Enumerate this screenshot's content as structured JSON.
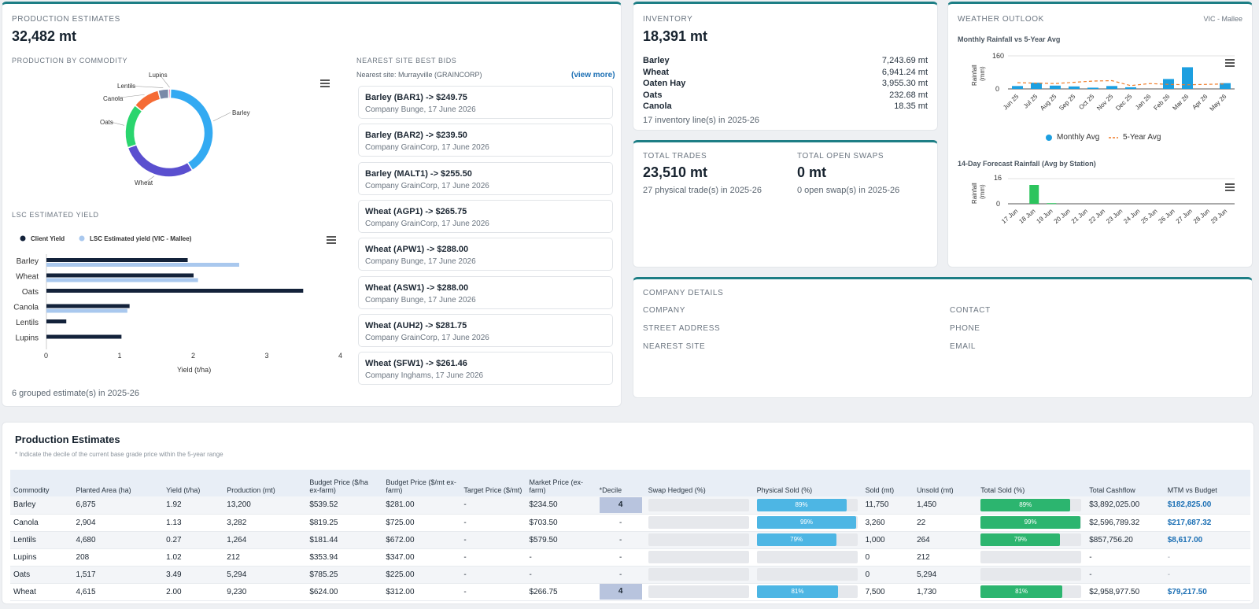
{
  "production": {
    "label": "PRODUCTION ESTIMATES",
    "value": "32,482 mt",
    "by_commodity_label": "PRODUCTION BY COMMODITY",
    "donut": {
      "segments": [
        {
          "name": "Barley",
          "value": 13200,
          "color": "#33aaf2"
        },
        {
          "name": "Wheat",
          "value": 9230,
          "color": "#5a4fcf"
        },
        {
          "name": "Oats",
          "value": 5294,
          "color": "#2ad56e"
        },
        {
          "name": "Canola",
          "value": 3282,
          "color": "#f56b35"
        },
        {
          "name": "Lentils",
          "value": 1264,
          "color": "#7a8aa8"
        },
        {
          "name": "Lupins",
          "value": 212,
          "color": "#e86aa6"
        }
      ]
    },
    "yield_label": "LSC ESTIMATED YIELD",
    "footer": "6 grouped estimate(s) in 2025-26"
  },
  "chart_data": [
    {
      "type": "pie",
      "categories": [
        "Barley",
        "Wheat",
        "Oats",
        "Canola",
        "Lentils",
        "Lupins"
      ],
      "values": [
        13200,
        9230,
        5294,
        3282,
        1264,
        212
      ],
      "title": "PRODUCTION BY COMMODITY"
    },
    {
      "type": "bar",
      "orientation": "horizontal",
      "categories": [
        "Barley",
        "Wheat",
        "Oats",
        "Canola",
        "Lentils",
        "Lupins"
      ],
      "series": [
        {
          "name": "Client Yield",
          "values": [
            1.92,
            2.0,
            3.49,
            1.13,
            0.27,
            1.02
          ],
          "color": "#13223a"
        },
        {
          "name": "LSC Estimated yield (VIC - Mallee)",
          "values": [
            2.62,
            2.06,
            null,
            1.1,
            null,
            null
          ],
          "color": "#a9c8ee"
        }
      ],
      "xlabel": "Yield (t/ha)",
      "xlim": [
        0,
        4
      ],
      "xticks": [
        "0",
        "1",
        "2",
        "3",
        "4"
      ],
      "title": "LSC ESTIMATED YIELD"
    },
    {
      "type": "bar",
      "categories": [
        "Jun 25",
        "Jul 25",
        "Aug 25",
        "Sep 25",
        "Oct 25",
        "Nov 25",
        "Dec 25",
        "Jan 26",
        "Feb 26",
        "Mar 26",
        "Apr 26",
        "May 26"
      ],
      "series": [
        {
          "name": "Monthly Avg",
          "type": "bar",
          "values": [
            14,
            30,
            16,
            12,
            6,
            14,
            8,
            0,
            48,
            105,
            0,
            28
          ],
          "color": "#1d9fe0"
        },
        {
          "name": "5-Year Avg",
          "type": "line",
          "values": [
            30,
            28,
            26,
            32,
            38,
            40,
            16,
            26,
            22,
            20,
            22,
            24
          ],
          "color": "#ef7d2a"
        }
      ],
      "ylabel": "Rainfall (mm)",
      "ylim": [
        0,
        160
      ],
      "yticks": [
        "0",
        "160"
      ],
      "title": "Monthly Rainfall vs 5-Year Avg"
    },
    {
      "type": "bar",
      "categories": [
        "17 Jun",
        "18 Jun",
        "19 Jun",
        "20 Jun",
        "21 Jun",
        "22 Jun",
        "23 Jun",
        "24 Jun",
        "25 Jun",
        "26 Jun",
        "27 Jun",
        "28 Jun",
        "29 Jun"
      ],
      "values": [
        0,
        12,
        0.4,
        0,
        0,
        0,
        0,
        0,
        0,
        0,
        0,
        0,
        0
      ],
      "ylabel": "Rainfall (mm)",
      "ylim": [
        0,
        16
      ],
      "yticks": [
        "0",
        "16"
      ],
      "title": "14-Day Forecast Rainfall (Avg by Station)"
    }
  ],
  "bids": {
    "label": "NEAREST SITE BEST BIDS",
    "site": "Nearest site: Murrayville (GRAINCORP)",
    "view_more": "(view more)",
    "items": [
      {
        "title": "Barley (BAR1) -> $249.75",
        "sub": "Company Bunge, 17 June 2026"
      },
      {
        "title": "Barley (BAR2) -> $239.50",
        "sub": "Company GrainCorp, 17 June 2026"
      },
      {
        "title": "Barley (MALT1) -> $255.50",
        "sub": "Company GrainCorp, 17 June 2026"
      },
      {
        "title": "Wheat (AGP1) -> $265.75",
        "sub": "Company GrainCorp, 17 June 2026"
      },
      {
        "title": "Wheat (APW1) -> $288.00",
        "sub": "Company Bunge, 17 June 2026"
      },
      {
        "title": "Wheat (ASW1) -> $288.00",
        "sub": "Company Bunge, 17 June 2026"
      },
      {
        "title": "Wheat (AUH2) -> $281.75",
        "sub": "Company GrainCorp, 17 June 2026"
      },
      {
        "title": "Wheat (SFW1) -> $261.46",
        "sub": "Company Inghams, 17 June 2026"
      }
    ]
  },
  "inventory": {
    "label": "INVENTORY",
    "value": "18,391 mt",
    "rows": [
      {
        "name": "Barley",
        "value": "7,243.69 mt"
      },
      {
        "name": "Wheat",
        "value": "6,941.24 mt"
      },
      {
        "name": "Oaten Hay",
        "value": "3,955.30 mt"
      },
      {
        "name": "Oats",
        "value": "232.68 mt"
      },
      {
        "name": "Canola",
        "value": "18.35 mt"
      }
    ],
    "footer": "17 inventory line(s) in 2025-26"
  },
  "trades": {
    "label": "TOTAL TRADES",
    "value": "23,510 mt",
    "sub": "27 physical trade(s) in 2025-26",
    "swaps_label": "TOTAL OPEN SWAPS",
    "swaps_value": "0 mt",
    "swaps_sub": "0 open swap(s) in 2025-26"
  },
  "weather": {
    "label": "WEATHER OUTLOOK",
    "region": "VIC - Mallee",
    "monthly_title": "Monthly Rainfall vs 5-Year Avg",
    "forecast_title": "14-Day Forecast Rainfall (Avg by Station)",
    "yaxis": "Rainfall (mm)",
    "legend_monthly": "Monthly Avg",
    "legend_5yr": "5-Year Avg"
  },
  "company": {
    "label": "COMPANY DETAILS",
    "company": "COMPANY",
    "contact": "CONTACT",
    "street": "STREET ADDRESS",
    "phone": "PHONE",
    "site": "NEAREST SITE",
    "email": "EMAIL"
  },
  "table": {
    "title": "Production Estimates",
    "note": "* Indicate the decile of the current base grade price within the 5-year range",
    "headers": [
      "Commodity",
      "Planted Area (ha)",
      "Yield (t/ha)",
      "Production (mt)",
      "Budget Price ($/ha ex-farm)",
      "Budget Price ($/mt ex-farm)",
      "Target Price ($/mt)",
      "Market Price (ex-farm)",
      "*Decile",
      "Swap Hedged (%)",
      "Physical Sold (%)",
      "Sold (mt)",
      "Unsold (mt)",
      "Total Sold (%)",
      "Total Cashflow",
      "MTM vs Budget"
    ],
    "rows": [
      {
        "c": "Barley",
        "area": "6,875",
        "yield": "1.92",
        "prod": "13,200",
        "bha": "$539.52",
        "bmt": "$281.00",
        "target": "-",
        "market": "$234.50",
        "decile": "4",
        "swap": 0,
        "phys": 0.89,
        "phys_l": "89%",
        "sold": "11,750",
        "unsold": "1,450",
        "tot": 0.89,
        "tot_l": "89%",
        "cash": "$3,892,025.00",
        "mtm": "$182,825.00"
      },
      {
        "c": "Canola",
        "area": "2,904",
        "yield": "1.13",
        "prod": "3,282",
        "bha": "$819.25",
        "bmt": "$725.00",
        "target": "-",
        "market": "$703.50",
        "decile": "-",
        "swap": 0,
        "phys": 0.99,
        "phys_l": "99%",
        "sold": "3,260",
        "unsold": "22",
        "tot": 0.99,
        "tot_l": "99%",
        "cash": "$2,596,789.32",
        "mtm": "$217,687.32"
      },
      {
        "c": "Lentils",
        "area": "4,680",
        "yield": "0.27",
        "prod": "1,264",
        "bha": "$181.44",
        "bmt": "$672.00",
        "target": "-",
        "market": "$579.50",
        "decile": "-",
        "swap": 0,
        "phys": 0.79,
        "phys_l": "79%",
        "sold": "1,000",
        "unsold": "264",
        "tot": 0.79,
        "tot_l": "79%",
        "cash": "$857,756.20",
        "mtm": "$8,617.00"
      },
      {
        "c": "Lupins",
        "area": "208",
        "yield": "1.02",
        "prod": "212",
        "bha": "$353.94",
        "bmt": "$347.00",
        "target": "-",
        "market": "-",
        "decile": "-",
        "swap": 0,
        "phys": 0,
        "phys_l": "",
        "sold": "0",
        "unsold": "212",
        "tot": 0,
        "tot_l": "",
        "cash": "-",
        "mtm": "-"
      },
      {
        "c": "Oats",
        "area": "1,517",
        "yield": "3.49",
        "prod": "5,294",
        "bha": "$785.25",
        "bmt": "$225.00",
        "target": "-",
        "market": "-",
        "decile": "-",
        "swap": 0,
        "phys": 0,
        "phys_l": "",
        "sold": "0",
        "unsold": "5,294",
        "tot": 0,
        "tot_l": "",
        "cash": "-",
        "mtm": "-"
      },
      {
        "c": "Wheat",
        "area": "4,615",
        "yield": "2.00",
        "prod": "9,230",
        "bha": "$624.00",
        "bmt": "$312.00",
        "target": "-",
        "market": "$266.75",
        "decile": "4",
        "swap": 0,
        "phys": 0.81,
        "phys_l": "81%",
        "sold": "7,500",
        "unsold": "1,730",
        "tot": 0.81,
        "tot_l": "81%",
        "cash": "$2,958,977.50",
        "mtm": "$79,217.50"
      }
    ]
  }
}
